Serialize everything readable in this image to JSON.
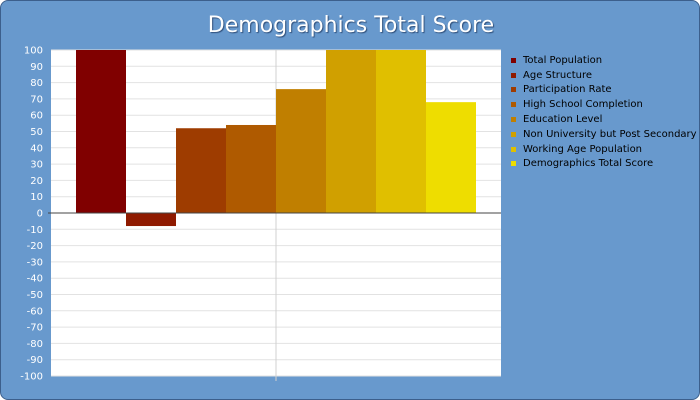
{
  "chart_data": {
    "type": "bar",
    "title": "Demographics Total Score",
    "xlabel": "",
    "ylabel": "",
    "ylim": [
      -100,
      100
    ],
    "ytick_step": 10,
    "y_ticks": [
      "100",
      "90",
      "80",
      "70",
      "60",
      "50",
      "40",
      "30",
      "20",
      "10",
      "0",
      "-10",
      "-20",
      "-30",
      "-40",
      "-50",
      "-60",
      "-70",
      "-80",
      "-90",
      "-100"
    ],
    "grid": true,
    "legend_position": "right",
    "categories": [
      "Total Population",
      "Age Structure",
      "Participation Rate",
      "High School Completion",
      "Education Level",
      "Non University but Post Secondary",
      "Working Age Population",
      "Demographics Total Score"
    ],
    "values": [
      100,
      -8,
      52,
      54,
      76,
      100,
      100,
      68
    ],
    "colors": [
      "#800000",
      "#8F1A00",
      "#9E3C00",
      "#AF5A00",
      "#C07F00",
      "#D0A000",
      "#E0BF00",
      "#EEDD00"
    ]
  }
}
